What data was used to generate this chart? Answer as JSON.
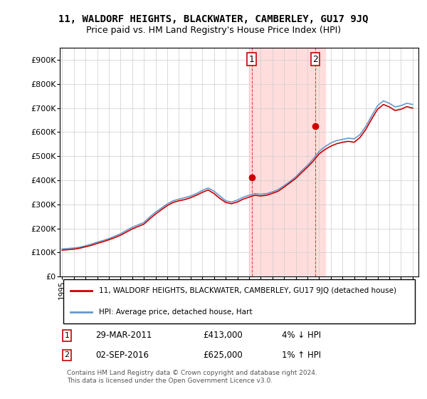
{
  "title": "11, WALDORF HEIGHTS, BLACKWATER, CAMBERLEY, GU17 9JQ",
  "subtitle": "Price paid vs. HM Land Registry's House Price Index (HPI)",
  "ylabel": "",
  "background_color": "#ffffff",
  "plot_bg_color": "#ffffff",
  "grid_color": "#cccccc",
  "line1_color": "#cc0000",
  "line2_color": "#6699cc",
  "purchase1": {
    "date": "2011-03-29",
    "label": "29-MAR-2011",
    "price": 413000,
    "pct": "4%",
    "dir": "↓",
    "x": 2011.24
  },
  "purchase2": {
    "date": "2016-09-02",
    "label": "02-SEP-2016",
    "price": 625000,
    "pct": "1%",
    "dir": "↑",
    "x": 2016.67
  },
  "legend1": "11, WALDORF HEIGHTS, BLACKWATER, CAMBERLEY, GU17 9JQ (detached house)",
  "legend2": "HPI: Average price, detached house, Hart",
  "footnote": "Contains HM Land Registry data © Crown copyright and database right 2024.\nThis data is licensed under the Open Government Licence v3.0.",
  "ylim": [
    0,
    950000
  ],
  "yticks": [
    0,
    100000,
    200000,
    300000,
    400000,
    500000,
    600000,
    700000,
    800000,
    900000
  ],
  "ytick_labels": [
    "£0",
    "£100K",
    "£200K",
    "£300K",
    "£400K",
    "£500K",
    "£600K",
    "£700K",
    "£800K",
    "£900K"
  ],
  "hpi_years": [
    1995,
    1995.5,
    1996,
    1996.5,
    1997,
    1997.5,
    1998,
    1998.5,
    1999,
    1999.5,
    2000,
    2000.5,
    2001,
    2001.5,
    2002,
    2002.5,
    2003,
    2003.5,
    2004,
    2004.5,
    2005,
    2005.5,
    2006,
    2006.5,
    2007,
    2007.5,
    2008,
    2008.5,
    2009,
    2009.5,
    2010,
    2010.5,
    2011,
    2011.5,
    2012,
    2012.5,
    2013,
    2013.5,
    2014,
    2014.5,
    2015,
    2015.5,
    2016,
    2016.5,
    2017,
    2017.5,
    2018,
    2018.5,
    2019,
    2019.5,
    2020,
    2020.5,
    2021,
    2021.5,
    2022,
    2022.5,
    2023,
    2023.5,
    2024,
    2024.5,
    2025
  ],
  "hpi_values": [
    115000,
    117000,
    119000,
    122000,
    128000,
    135000,
    143000,
    150000,
    158000,
    168000,
    178000,
    192000,
    205000,
    215000,
    225000,
    248000,
    268000,
    285000,
    302000,
    315000,
    322000,
    328000,
    335000,
    345000,
    358000,
    368000,
    355000,
    335000,
    315000,
    310000,
    318000,
    330000,
    338000,
    345000,
    342000,
    345000,
    352000,
    362000,
    378000,
    395000,
    415000,
    440000,
    462000,
    490000,
    520000,
    540000,
    555000,
    565000,
    570000,
    575000,
    572000,
    590000,
    625000,
    668000,
    710000,
    730000,
    720000,
    705000,
    710000,
    720000,
    715000
  ],
  "prop_years": [
    1995,
    1995.5,
    1996,
    1996.5,
    1997,
    1997.5,
    1998,
    1998.5,
    1999,
    1999.5,
    2000,
    2000.5,
    2001,
    2001.5,
    2002,
    2002.5,
    2003,
    2003.5,
    2004,
    2004.5,
    2005,
    2005.5,
    2006,
    2006.5,
    2007,
    2007.5,
    2008,
    2008.5,
    2009,
    2009.5,
    2010,
    2010.5,
    2011,
    2011.5,
    2012,
    2012.5,
    2013,
    2013.5,
    2014,
    2014.5,
    2015,
    2015.5,
    2016,
    2016.5,
    2017,
    2017.5,
    2018,
    2018.5,
    2019,
    2019.5,
    2020,
    2020.5,
    2021,
    2021.5,
    2022,
    2022.5,
    2023,
    2023.5,
    2024,
    2024.5,
    2025
  ],
  "prop_values": [
    110000,
    112000,
    114000,
    118000,
    124000,
    130000,
    138000,
    145000,
    153000,
    162000,
    172000,
    185000,
    198000,
    208000,
    218000,
    240000,
    260000,
    278000,
    295000,
    308000,
    315000,
    320000,
    328000,
    338000,
    350000,
    360000,
    345000,
    325000,
    308000,
    303000,
    310000,
    322000,
    330000,
    338000,
    335000,
    338000,
    346000,
    355000,
    372000,
    390000,
    408000,
    432000,
    455000,
    480000,
    510000,
    528000,
    542000,
    552000,
    558000,
    562000,
    558000,
    578000,
    612000,
    655000,
    695000,
    715000,
    705000,
    690000,
    695000,
    706000,
    700000
  ],
  "xlim": [
    1994.8,
    2025.5
  ],
  "xticks": [
    1995,
    1996,
    1997,
    1998,
    1999,
    2000,
    2001,
    2002,
    2003,
    2004,
    2005,
    2006,
    2007,
    2008,
    2009,
    2010,
    2011,
    2012,
    2013,
    2014,
    2015,
    2016,
    2017,
    2018,
    2019,
    2020,
    2021,
    2022,
    2023,
    2024,
    2025
  ],
  "highlight_color": "#ffdddd",
  "highlight_x1": 2011.0,
  "highlight_x2": 2017.5,
  "marker1_x": 2011.24,
  "marker1_y": 413000,
  "marker2_x": 2016.67,
  "marker2_y": 625000
}
